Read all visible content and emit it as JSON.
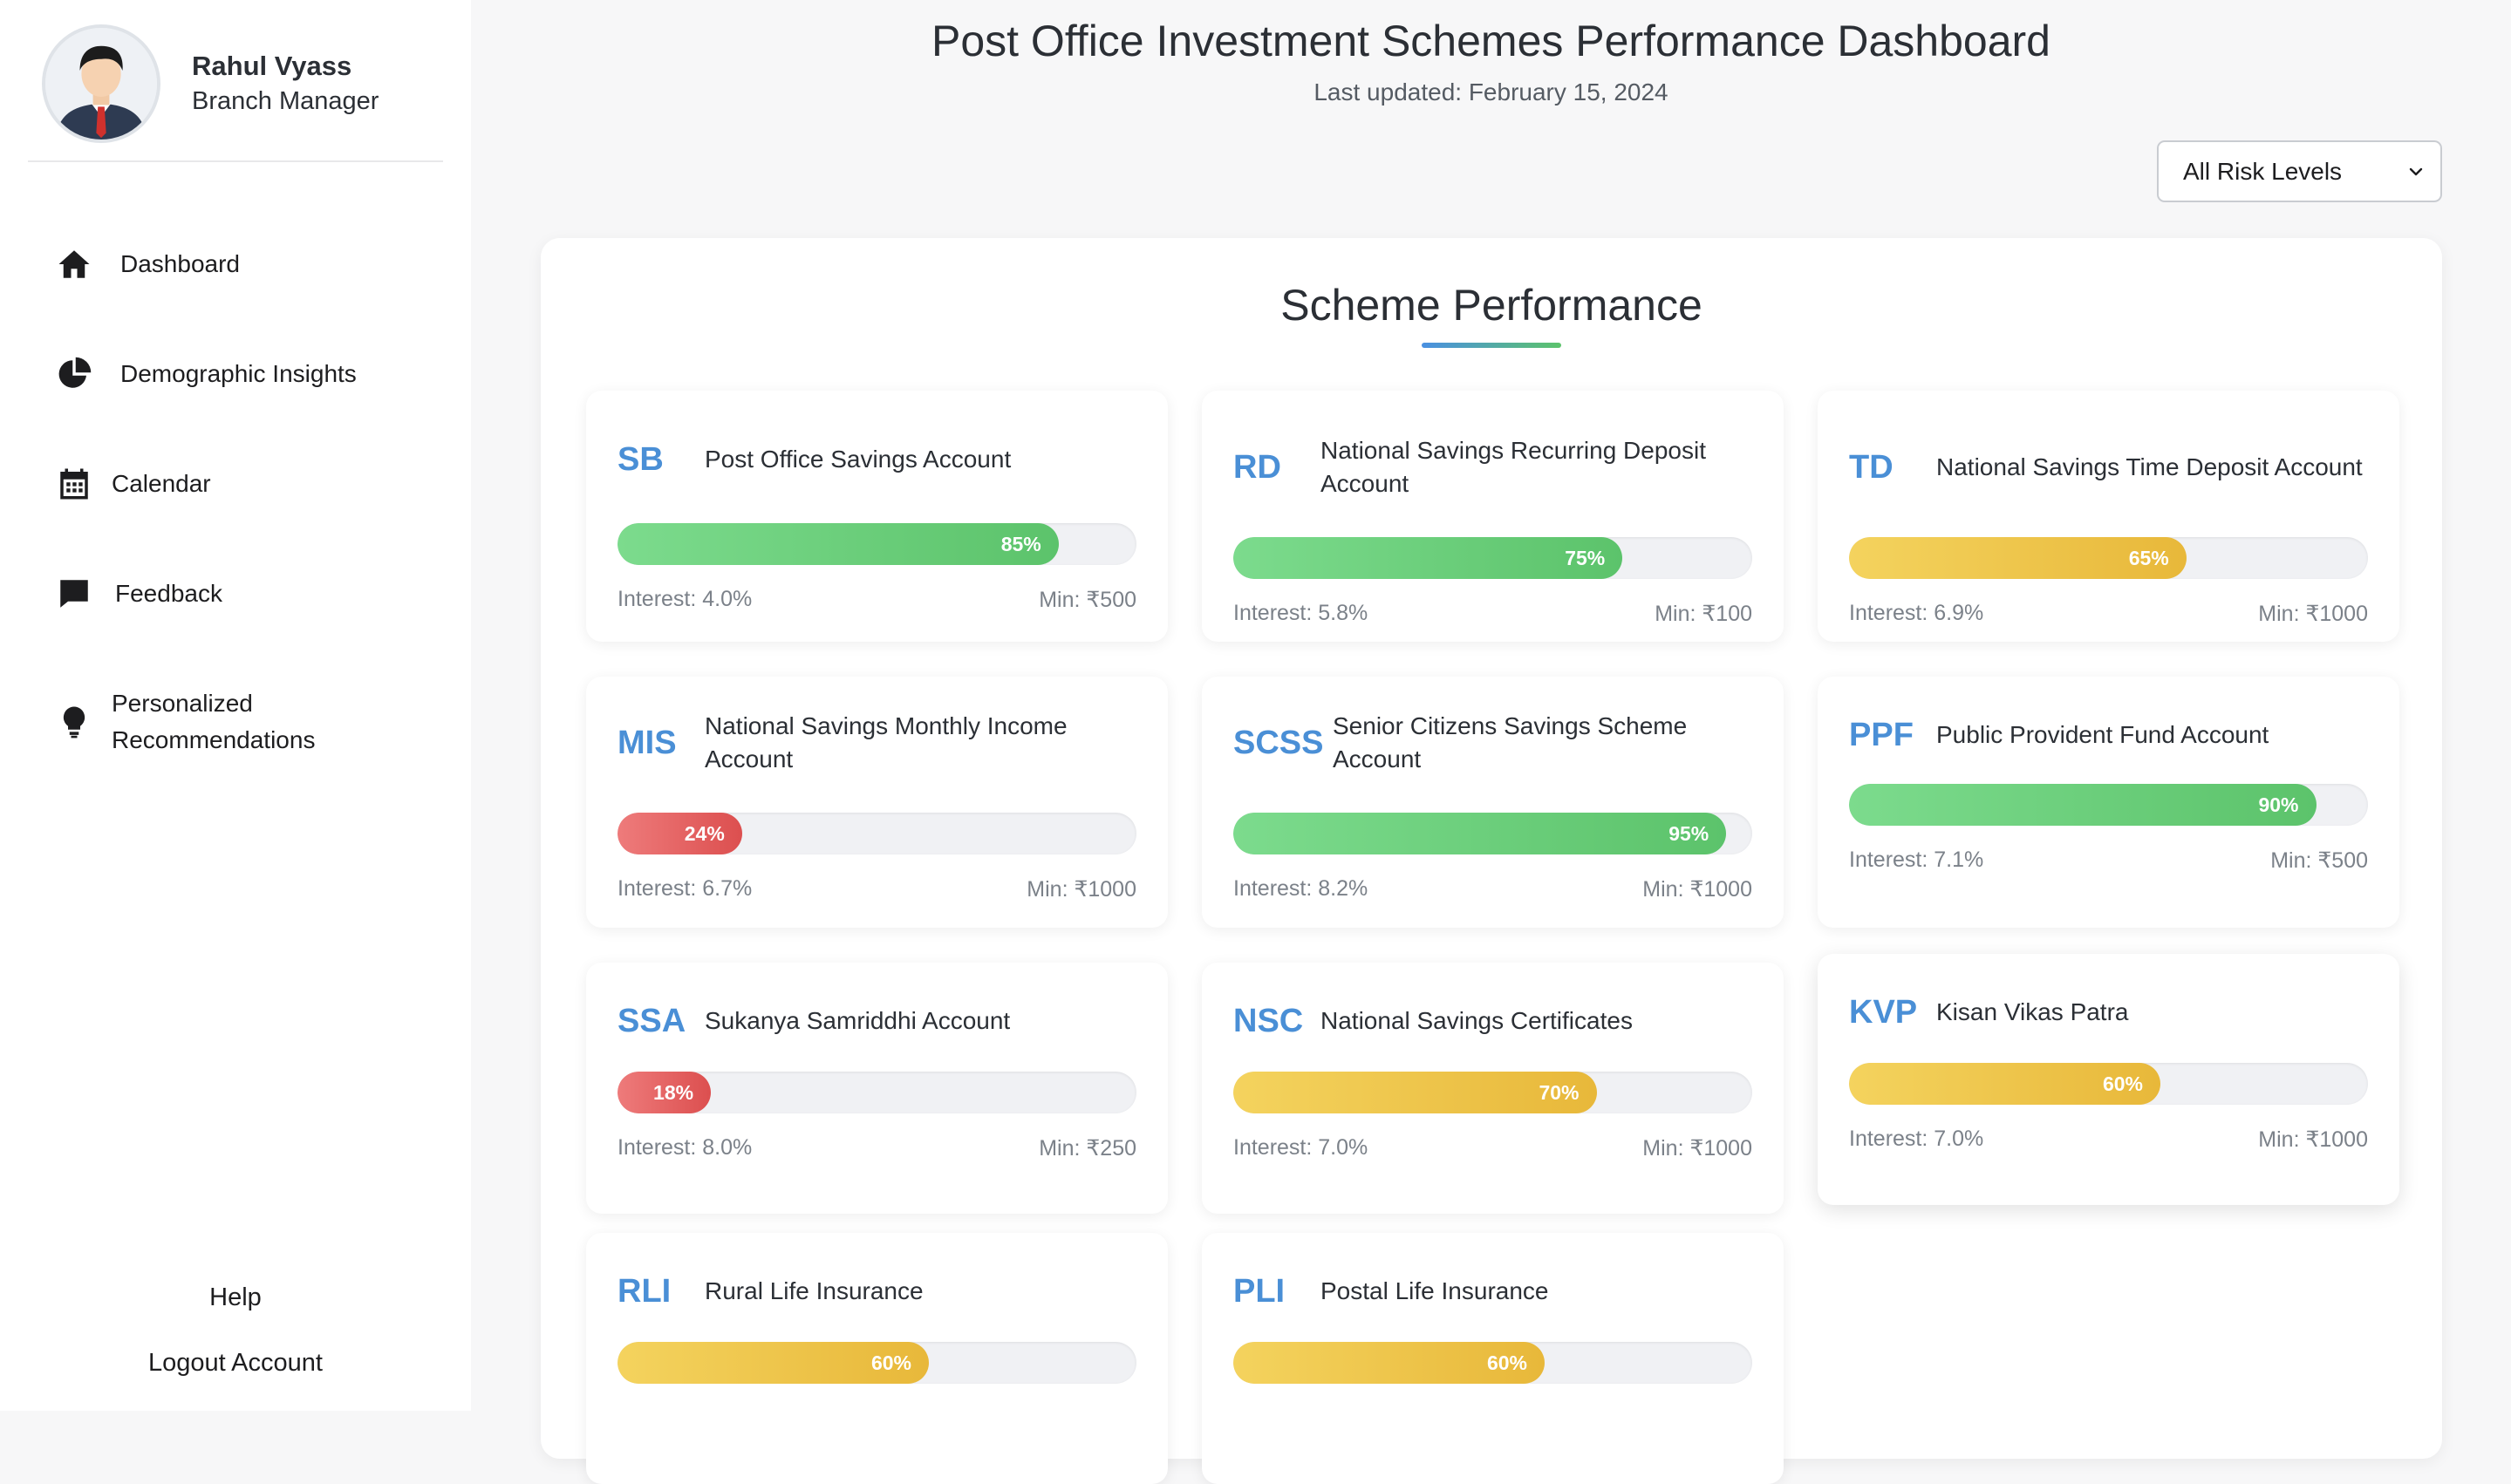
{
  "user": {
    "name": "Rahul Vyass",
    "role": "Branch Manager"
  },
  "nav": [
    {
      "label": "Dashboard",
      "icon": "home-icon"
    },
    {
      "label": "Demographic Insights",
      "icon": "pie-chart-icon"
    },
    {
      "label": "Calendar",
      "icon": "calendar-icon"
    },
    {
      "label": "Feedback",
      "icon": "chat-bubble-icon"
    },
    {
      "label": "Personalized Recommendations",
      "icon": "lightbulb-icon"
    }
  ],
  "bottom_links": {
    "help": "Help",
    "logout": "Logout Account"
  },
  "header": {
    "title": "Post Office Investment Schemes Performance Dashboard",
    "last_updated": "Last updated: February 15, 2024"
  },
  "filter": {
    "selected": "All Risk Levels"
  },
  "panel": {
    "title": "Scheme Performance"
  },
  "colors": {
    "accent": "#4a8fd6",
    "green": "#5cc36b",
    "yellow": "#e8b83a",
    "red": "#dc4f4f"
  },
  "schemes": [
    {
      "abbr": "SB",
      "name": "Post Office Savings Account",
      "performance": 85,
      "performance_label": "85%",
      "level": "green",
      "interest": "Interest: 4.0%",
      "min": "Min: ₹500"
    },
    {
      "abbr": "RD",
      "name": "National Savings Recurring Deposit Account",
      "performance": 75,
      "performance_label": "75%",
      "level": "green",
      "interest": "Interest: 5.8%",
      "min": "Min: ₹100"
    },
    {
      "abbr": "TD",
      "name": "National Savings Time Deposit Account",
      "performance": 65,
      "performance_label": "65%",
      "level": "yellow",
      "interest": "Interest: 6.9%",
      "min": "Min: ₹1000"
    },
    {
      "abbr": "MIS",
      "name": "National Savings Monthly Income Account",
      "performance": 24,
      "performance_label": "24%",
      "level": "red",
      "interest": "Interest: 6.7%",
      "min": "Min: ₹1000"
    },
    {
      "abbr": "SCSS",
      "name": "Senior Citizens Savings Scheme Account",
      "performance": 95,
      "performance_label": "95%",
      "level": "green",
      "interest": "Interest: 8.2%",
      "min": "Min: ₹1000"
    },
    {
      "abbr": "PPF",
      "name": "Public Provident Fund Account",
      "performance": 90,
      "performance_label": "90%",
      "level": "green",
      "interest": "Interest: 7.1%",
      "min": "Min: ₹500"
    },
    {
      "abbr": "SSA",
      "name": "Sukanya Samriddhi Account",
      "performance": 18,
      "performance_label": "18%",
      "level": "red",
      "interest": "Interest: 8.0%",
      "min": "Min: ₹250"
    },
    {
      "abbr": "NSC",
      "name": "National Savings Certificates",
      "performance": 70,
      "performance_label": "70%",
      "level": "yellow",
      "interest": "Interest: 7.0%",
      "min": "Min: ₹1000"
    },
    {
      "abbr": "KVP",
      "name": "Kisan Vikas Patra",
      "performance": 60,
      "performance_label": "60%",
      "level": "yellow",
      "interest": "Interest: 7.0%",
      "min": "Min: ₹1000"
    },
    {
      "abbr": "RLI",
      "name": "Rural Life Insurance",
      "performance": 60,
      "performance_label": "60%",
      "level": "yellow",
      "interest": "",
      "min": ""
    },
    {
      "abbr": "PLI",
      "name": "Postal Life Insurance",
      "performance": 60,
      "performance_label": "60%",
      "level": "yellow",
      "interest": "",
      "min": ""
    }
  ]
}
